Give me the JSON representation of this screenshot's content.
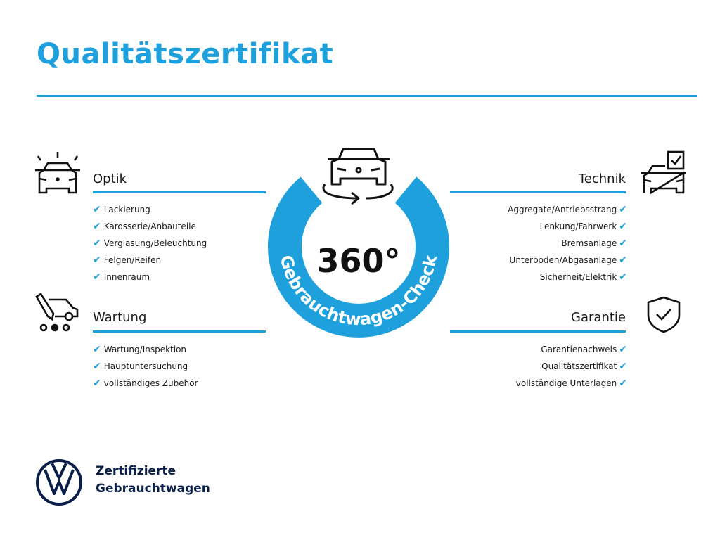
{
  "title": "Qualitätszertifikat",
  "accent_color": "#1ea0dc",
  "center": {
    "degrees": "360°",
    "ring_text": "Gebrauchtwagen-Check",
    "icon": "car-rotate-icon"
  },
  "sections": {
    "optik": {
      "title": "Optik",
      "icon": "car-lights-icon",
      "items": [
        "Lackierung",
        "Karosserie/Anbauteile",
        "Verglasung/Beleuchtung",
        "Felgen/Reifen",
        "Innenraum"
      ]
    },
    "wartung": {
      "title": "Wartung",
      "icon": "service-van-icon",
      "items": [
        "Wartung/Inspektion",
        "Hauptuntersuchung",
        "vollständiges Zubehör"
      ]
    },
    "technik": {
      "title": "Technik",
      "icon": "car-checklist-icon",
      "items": [
        "Aggregate/Antriebsstrang",
        "Lenkung/Fahrwerk",
        "Bremsanlage",
        "Unterboden/Abgasanlage",
        "Sicherheit/Elektrik"
      ]
    },
    "garantie": {
      "title": "Garantie",
      "icon": "shield-check-icon",
      "items": [
        "Garantienachweis",
        "Qualitätszertifikat",
        "vollständige Unterlagen"
      ]
    }
  },
  "check_glyph": "✔",
  "brand": {
    "line1": "Zertifizierte",
    "line2": "Gebrauchtwagen",
    "logo": "vw-logo"
  }
}
